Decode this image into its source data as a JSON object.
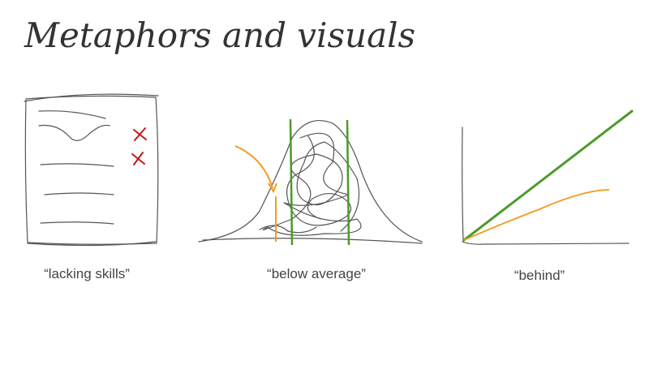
{
  "title": "Metaphors and visuals",
  "captions": [
    "“lacking skills”",
    "“below average”",
    "“behind”"
  ]
}
